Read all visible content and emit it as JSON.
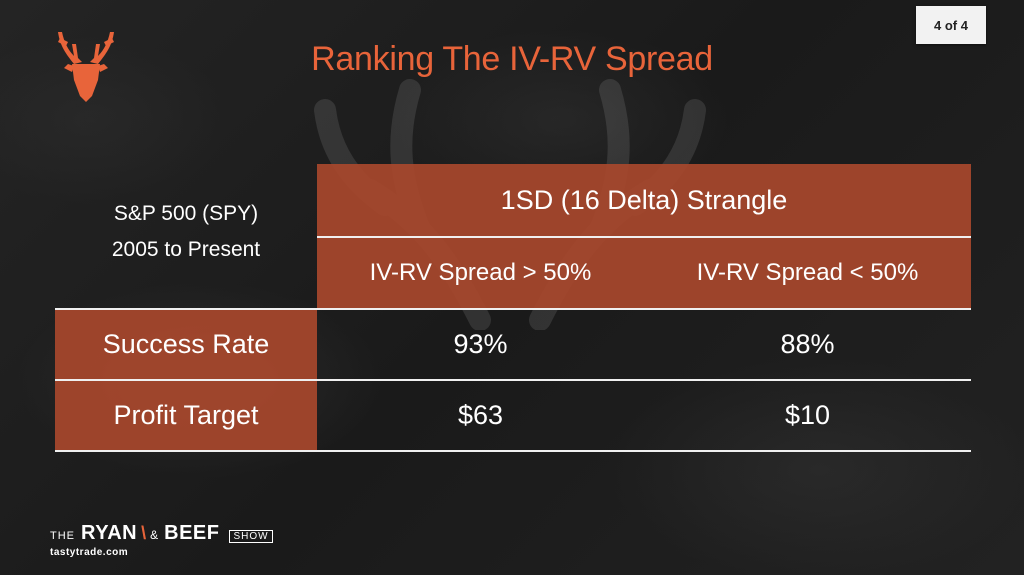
{
  "page_badge": "4 of 4",
  "title": "Ranking The IV-RV Spread",
  "corner_label": {
    "line1": "S&P 500 (SPY)",
    "line2": "2005 to Present"
  },
  "table": {
    "group_header": "1SD (16 Delta) Strangle",
    "columns": [
      "IV-RV Spread > 50%",
      "IV-RV Spread < 50%"
    ],
    "rows": [
      {
        "label": "Success Rate",
        "values": [
          "93%",
          "88%"
        ]
      },
      {
        "label": "Profit Target",
        "values": [
          "$63",
          "$10"
        ]
      }
    ]
  },
  "brand": {
    "the": "THE",
    "ryan": "RYAN",
    "amp": "&",
    "beef": "BEEF",
    "show": "SHOW",
    "site": "tastytrade.com"
  },
  "colors": {
    "accent": "#e8643a",
    "table_fill": "#a8482c",
    "background": "#1c1c1c"
  },
  "icons": {
    "logo": "deer-head-icon",
    "watermark": "deer-antlers-icon"
  }
}
